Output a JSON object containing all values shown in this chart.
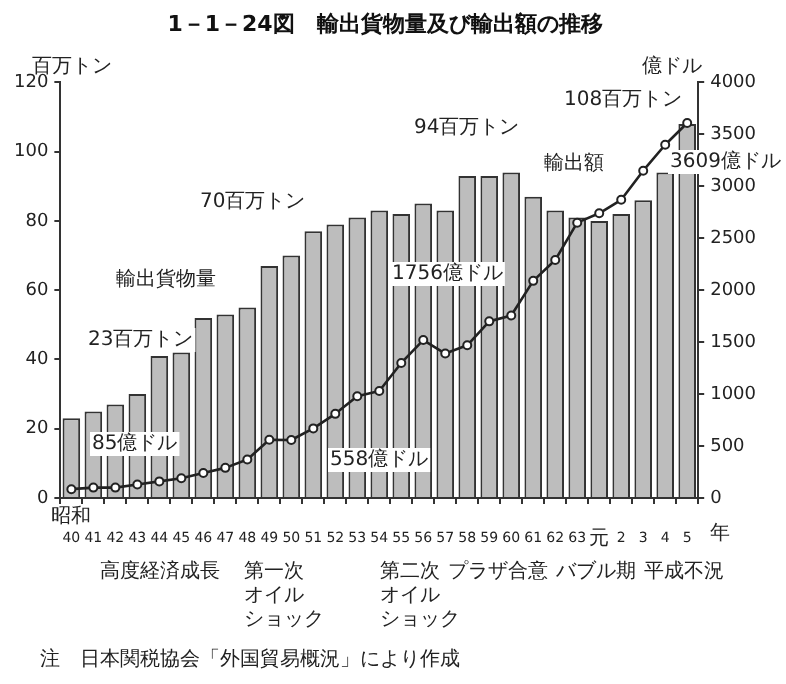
{
  "chart_data": {
    "type": "bar",
    "title": "1－1－24図　輸出貨物量及び輸出額の推移",
    "ylabel": "百万トン",
    "y2label": "億ドル",
    "xlabel": "年",
    "categories": [
      "昭和40",
      "41",
      "42",
      "43",
      "44",
      "45",
      "46",
      "47",
      "48",
      "49",
      "50",
      "51",
      "52",
      "53",
      "54",
      "55",
      "56",
      "57",
      "58",
      "59",
      "60",
      "61",
      "62",
      "63",
      "元",
      "2",
      "3",
      "4",
      "5"
    ],
    "series": [
      {
        "name": "輸出貨物量",
        "color": "#bdbdbd",
        "values": [
          23,
          25,
          27,
          30,
          41,
          42,
          52,
          53,
          55,
          67,
          70,
          77,
          79,
          81,
          83,
          82,
          85,
          83,
          93,
          93,
          94,
          87,
          83,
          81,
          80,
          82,
          86,
          94,
          108
        ]
      },
      {
        "type": "line",
        "name": "輸出額",
        "axis": "y2",
        "color": "#222222",
        "values": [
          85,
          100,
          100,
          130,
          160,
          190,
          240,
          290,
          370,
          560,
          558,
          670,
          810,
          980,
          1030,
          1300,
          1520,
          1390,
          1470,
          1700,
          1756,
          2090,
          2290,
          2650,
          2740,
          2870,
          3150,
          3400,
          3609
        ]
      }
    ],
    "ylim": [
      0,
      120
    ],
    "yticks": [
      0,
      20,
      40,
      60,
      80,
      100,
      120
    ],
    "y2lim": [
      0,
      4000
    ],
    "y2ticks": [
      0,
      500,
      1000,
      1500,
      2000,
      2500,
      3000,
      3500,
      4000
    ],
    "marker": "circle",
    "annotations": [
      "23百万トン",
      "85億ドル",
      "70百万トン",
      "558億ドル",
      "94百万トン",
      "1756億ドル",
      "108百万トン",
      "3609億ドル",
      "高度経済成長",
      "第一次オイルショック",
      "第二次オイルショック",
      "プラザ合意",
      "バブル期",
      "平成不況",
      "注　日本関税協会「外国貿易概況」により作成"
    ]
  }
}
